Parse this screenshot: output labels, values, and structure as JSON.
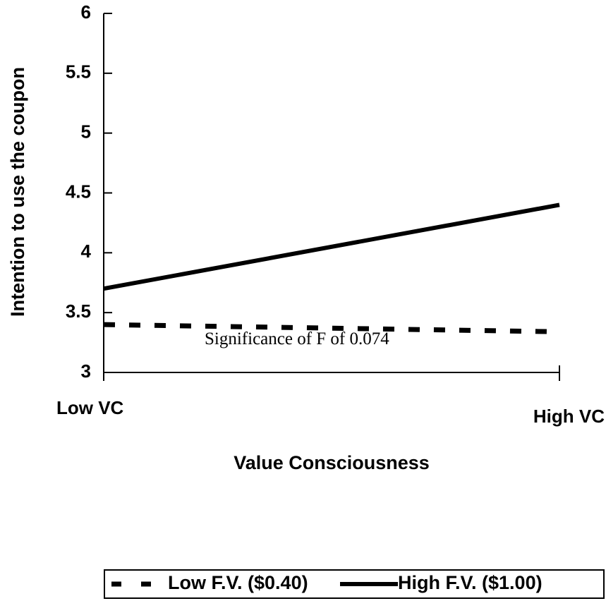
{
  "chart_data": {
    "type": "line",
    "x_label": "Value Consciousness",
    "y_label": "Intention to use the coupon",
    "annotation": "Significance of F of 0.074",
    "categories": [
      "Low VC",
      "High VC"
    ],
    "series": [
      {
        "name": "Low F.V. ($0.40)",
        "color": "#000000",
        "dashed": true,
        "values": [
          3.4,
          3.34
        ]
      },
      {
        "name": "High F.V. ($1.00)",
        "color": "#000000",
        "dashed": false,
        "values": [
          3.7,
          4.4
        ]
      }
    ],
    "ylim": [
      3,
      6
    ],
    "yticks": [
      3,
      3.5,
      4,
      4.5,
      5,
      5.5,
      6
    ],
    "legend": "bottom"
  }
}
